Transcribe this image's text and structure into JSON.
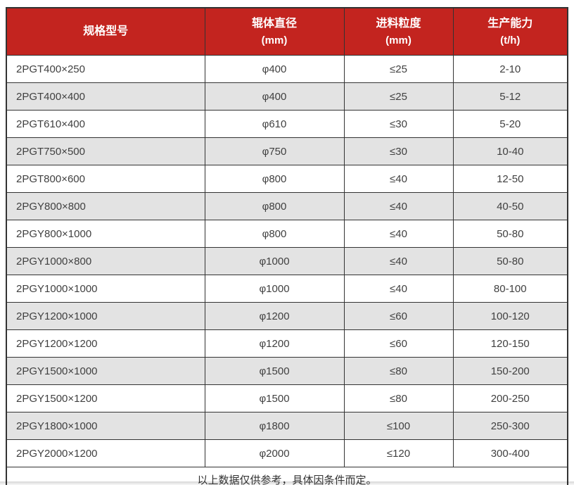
{
  "table": {
    "columns": [
      {
        "label": "规格型号",
        "unit": ""
      },
      {
        "label": "辊体直径",
        "unit": "(mm)"
      },
      {
        "label": "进料粒度",
        "unit": "(mm)"
      },
      {
        "label": "生产能力",
        "unit": "(t/h)"
      }
    ],
    "rows": [
      [
        "2PGT400×250",
        "φ400",
        "≤25",
        "2-10"
      ],
      [
        "2PGT400×400",
        "φ400",
        "≤25",
        "5-12"
      ],
      [
        "2PGT610×400",
        "φ610",
        "≤30",
        "5-20"
      ],
      [
        "2PGT750×500",
        "φ750",
        "≤30",
        "10-40"
      ],
      [
        "2PGT800×600",
        "φ800",
        "≤40",
        "12-50"
      ],
      [
        "2PGY800×800",
        "φ800",
        "≤40",
        "40-50"
      ],
      [
        "2PGY800×1000",
        "φ800",
        "≤40",
        "50-80"
      ],
      [
        "2PGY1000×800",
        "φ1000",
        "≤40",
        "50-80"
      ],
      [
        "2PGY1000×1000",
        "φ1000",
        "≤40",
        "80-100"
      ],
      [
        "2PGY1200×1000",
        "φ1200",
        "≤60",
        "100-120"
      ],
      [
        "2PGY1200×1200",
        "φ1200",
        "≤60",
        "120-150"
      ],
      [
        "2PGY1500×1000",
        "φ1500",
        "≤80",
        "150-200"
      ],
      [
        "2PGY1500×1200",
        "φ1500",
        "≤80",
        "200-250"
      ],
      [
        "2PGY1800×1000",
        "φ1800",
        "≤100",
        "250-300"
      ],
      [
        "2PGY2000×1200",
        "φ2000",
        "≤120",
        "300-400"
      ]
    ],
    "footer_note": "以上数据仅供参考，具体因条件而定。"
  },
  "colors": {
    "header_bg": "#c3241f",
    "header_text": "#ffffff",
    "row_alt_bg": "#e3e3e3",
    "border": "#333333",
    "body_text": "#404040"
  },
  "chart_data": {
    "type": "table",
    "title": "",
    "columns": [
      "规格型号",
      "辊体直径 (mm)",
      "进料粒度 (mm)",
      "生产能力 (t/h)"
    ],
    "rows": [
      [
        "2PGT400×250",
        "φ400",
        "≤25",
        "2-10"
      ],
      [
        "2PGT400×400",
        "φ400",
        "≤25",
        "5-12"
      ],
      [
        "2PGT610×400",
        "φ610",
        "≤30",
        "5-20"
      ],
      [
        "2PGT750×500",
        "φ750",
        "≤30",
        "10-40"
      ],
      [
        "2PGT800×600",
        "φ800",
        "≤40",
        "12-50"
      ],
      [
        "2PGY800×800",
        "φ800",
        "≤40",
        "40-50"
      ],
      [
        "2PGY800×1000",
        "φ800",
        "≤40",
        "50-80"
      ],
      [
        "2PGY1000×800",
        "φ1000",
        "≤40",
        "50-80"
      ],
      [
        "2PGY1000×1000",
        "φ1000",
        "≤40",
        "80-100"
      ],
      [
        "2PGY1200×1000",
        "φ1200",
        "≤60",
        "100-120"
      ],
      [
        "2PGY1200×1200",
        "φ1200",
        "≤60",
        "120-150"
      ],
      [
        "2PGY1500×1000",
        "φ1500",
        "≤80",
        "150-200"
      ],
      [
        "2PGY1500×1200",
        "φ1500",
        "≤80",
        "200-250"
      ],
      [
        "2PGY1800×1000",
        "φ1800",
        "≤100",
        "250-300"
      ],
      [
        "2PGY2000×1200",
        "φ2000",
        "≤120",
        "300-400"
      ]
    ],
    "footnote": "以上数据仅供参考，具体因条件而定。"
  }
}
